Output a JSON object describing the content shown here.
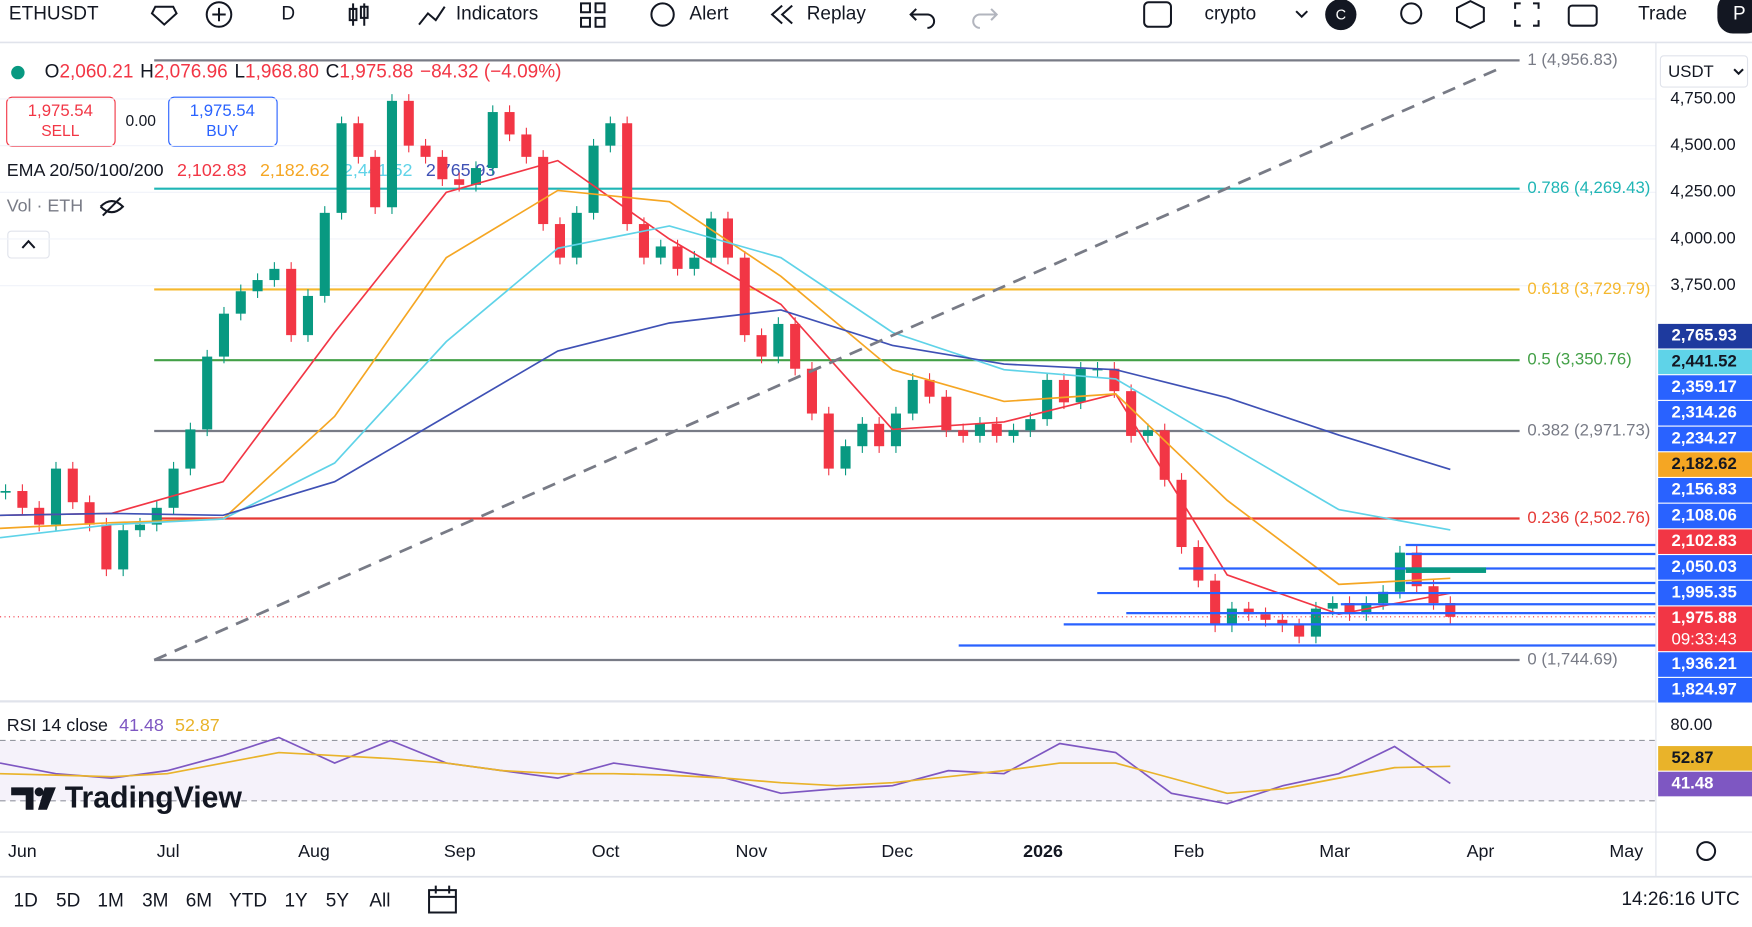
{
  "toolbar": {
    "symbol": "ETHUSDT",
    "interval": "D",
    "indicators": "Indicators",
    "alert": "Alert",
    "replay": "Replay",
    "layout": "crypto",
    "avatar": "C",
    "trade": "Trade",
    "more": "P"
  },
  "legend": {
    "ohlc": [
      {
        "k": "O",
        "v": "2,060.21"
      },
      {
        "k": "H",
        "v": "2,076.96"
      },
      {
        "k": "L",
        "v": "1,968.80"
      },
      {
        "k": "C",
        "v": "1,975.88"
      }
    ],
    "change": "−84.32 (−4.09%)",
    "sell": {
      "price": "1,975.54",
      "label": "SELL"
    },
    "spread": "0.00",
    "buy": {
      "price": "1,975.54",
      "label": "BUY"
    },
    "ema": {
      "name": "EMA 20/50/100/200",
      "values": [
        "2,102.83",
        "2,182.62",
        "2,441.52",
        "2,765.93"
      ],
      "colors": [
        "#f23645",
        "#f5a623",
        "#5fd3e8",
        "#3f51b5"
      ]
    },
    "vol": "Vol · ETH"
  },
  "chart_data": {
    "type": "candlestick",
    "up_color": "#089981",
    "down_color": "#f23645",
    "closes": [
      2650,
      2560,
      2470,
      2770,
      2590,
      2470,
      2230,
      2440,
      2470,
      2560,
      2770,
      2980,
      3370,
      3600,
      3720,
      3780,
      3840,
      3485,
      3695,
      4140,
      4620,
      4440,
      4170,
      4740,
      4500,
      4440,
      4320,
      4290,
      4380,
      4680,
      4560,
      4440,
      4080,
      3900,
      4140,
      4500,
      4620,
      4080,
      3900,
      3960,
      3840,
      3900,
      4110,
      3900,
      3485,
      3370,
      3545,
      3305,
      3065,
      2770,
      2890,
      3010,
      2890,
      3065,
      3245,
      3155,
      2975,
      2945,
      3010,
      2945,
      2975,
      3035,
      3245,
      3125,
      3305,
      3305,
      3185,
      2945,
      2975,
      2710,
      2350,
      2170,
      1930,
      2020,
      1990,
      1960,
      1930,
      1870,
      2020,
      2050,
      1990,
      2050,
      2110,
      2320,
      2140,
      2050,
      1975.88
    ],
    "ema_series": [
      {
        "color": "#f23645",
        "values": [
          2520,
          2530,
          2700,
          3500,
          4250,
          4420,
          4000,
          3650,
          2980,
          3020,
          3170,
          2200,
          1990,
          2102.83
        ]
      },
      {
        "color": "#f5a623",
        "values": [
          2450,
          2480,
          2500,
          3050,
          3900,
          4260,
          4200,
          3800,
          3300,
          3130,
          3170,
          2600,
          2150,
          2182.62
        ]
      },
      {
        "color": "#5fd3e8",
        "values": [
          2400,
          2470,
          2500,
          2800,
          3450,
          3950,
          4070,
          3900,
          3500,
          3300,
          3250,
          2900,
          2550,
          2441.52
        ]
      },
      {
        "color": "#3f51b5",
        "values": [
          2520,
          2530,
          2520,
          2700,
          3050,
          3400,
          3550,
          3620,
          3430,
          3330,
          3300,
          3150,
          2950,
          2765.93
        ]
      }
    ],
    "ylim": [
      1529,
      5011
    ],
    "yticks": [
      {
        "value": 4750,
        "label": "4,750.00"
      },
      {
        "value": 4500,
        "label": "4,500.00"
      },
      {
        "value": 4250,
        "label": "4,250.00"
      },
      {
        "value": 4000,
        "label": "4,000.00"
      },
      {
        "value": 3750,
        "label": "3,750.00"
      }
    ],
    "fib": [
      {
        "value": 4956.83,
        "label": "1 (4,956.83)",
        "color": "#787b86"
      },
      {
        "value": 4269.43,
        "label": "0.786 (4,269.43)",
        "color": "#1fb5b5"
      },
      {
        "value": 3729.79,
        "label": "0.618 (3,729.79)",
        "color": "#f5b82e"
      },
      {
        "value": 3350.76,
        "label": "0.5 (3,350.76)",
        "color": "#43a047"
      },
      {
        "value": 2971.73,
        "label": "0.382 (2,971.73)",
        "color": "#787b86"
      },
      {
        "value": 2502.76,
        "label": "0.236 (2,502.76)",
        "color": "#e53935"
      },
      {
        "value": 1744.69,
        "label": "0 (1,744.69)",
        "color": "#787b86"
      }
    ],
    "price_tags": [
      {
        "label": "2,765.93",
        "color": "#1e3a9e",
        "text": "#ffffff"
      },
      {
        "label": "2,441.52",
        "color": "#5fd3e8",
        "text": "#131722"
      },
      {
        "label": "2,359.17",
        "color": "#2962ff",
        "text": "#ffffff"
      },
      {
        "label": "2,314.26",
        "color": "#2962ff",
        "text": "#ffffff"
      },
      {
        "label": "2,234.27",
        "color": "#2962ff",
        "text": "#ffffff"
      },
      {
        "label": "2,182.62",
        "color": "#f5a623",
        "text": "#131722"
      },
      {
        "label": "2,156.83",
        "color": "#2962ff",
        "text": "#ffffff"
      },
      {
        "label": "2,108.06",
        "color": "#2962ff",
        "text": "#ffffff"
      },
      {
        "label": "2,102.83",
        "color": "#f23645",
        "text": "#ffffff"
      },
      {
        "label": "2,050.03",
        "color": "#2962ff",
        "text": "#ffffff"
      },
      {
        "label": "1,995.35",
        "color": "#2962ff",
        "text": "#ffffff"
      },
      {
        "label": "1,975.88",
        "color": "#f23645",
        "text": "#ffffff",
        "sub": "09:33:43"
      },
      {
        "label": "1,936.21",
        "color": "#2962ff",
        "text": "#ffffff"
      },
      {
        "label": "1,824.97",
        "color": "#2962ff",
        "text": "#ffffff"
      }
    ],
    "currency": "USDT",
    "x_labels": [
      "Jun",
      "Jul",
      "Aug",
      "Sep",
      "Oct",
      "Nov",
      "Dec",
      "2026",
      "Feb",
      "Mar",
      "Apr",
      "May"
    ]
  },
  "rsi": {
    "title": "RSI 14 close",
    "value_labels": [
      "41.48",
      "52.87"
    ],
    "series": [
      {
        "color": "#7e57c2",
        "values": [
          55,
          48,
          45,
          50,
          60,
          72,
          55,
          70,
          55,
          50,
          45,
          55,
          50,
          45,
          35,
          38,
          40,
          50,
          48,
          68,
          62,
          35,
          28,
          40,
          48,
          66,
          41.48
        ]
      },
      {
        "color": "#e9b32a",
        "values": [
          48,
          47,
          46,
          48,
          55,
          62,
          60,
          58,
          55,
          50,
          48,
          48,
          47,
          45,
          42,
          40,
          42,
          46,
          50,
          55,
          55,
          45,
          35,
          38,
          45,
          52,
          52.87
        ]
      }
    ],
    "ylim": [
      11.5,
      90.7
    ],
    "yticks": [
      {
        "value": 80,
        "label": "80.00"
      }
    ],
    "band": [
      30,
      70
    ]
  },
  "watermark": "TradingView",
  "bottom": {
    "ranges": [
      "1D",
      "5D",
      "1M",
      "3M",
      "6M",
      "YTD",
      "1Y",
      "5Y",
      "All"
    ],
    "time": "14:26:16 UTC"
  }
}
